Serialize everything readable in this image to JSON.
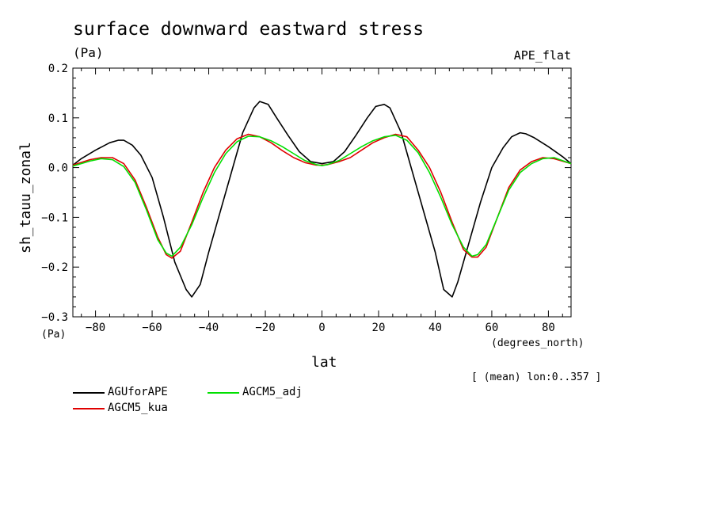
{
  "chart_data": {
    "type": "line",
    "title": "surface downward eastward stress",
    "units": "(Pa)",
    "dataset": "APE_flat",
    "xlabel": "lat",
    "xunits": "(degrees_north)",
    "ylabel": "sh_tauu_zonal",
    "note": "[ (mean) lon:0..357 ]",
    "xlim": [
      -88,
      88
    ],
    "ylim": [
      -0.3,
      0.2
    ],
    "xticks": [
      -80,
      -60,
      -40,
      -20,
      0,
      20,
      40,
      60,
      80
    ],
    "xtick_labels": [
      "−80",
      "−60",
      "−40",
      "−20",
      "0",
      "20",
      "40",
      "60",
      "80"
    ],
    "yticks": [
      -0.3,
      -0.2,
      -0.1,
      0.0,
      0.1,
      0.2
    ],
    "ytick_labels": [
      "−0.3",
      "−0.2",
      "−0.1",
      "0.0",
      "0.1",
      "0.2"
    ],
    "series": [
      {
        "name": "AGUforAPE",
        "color": "#000000",
        "x": [
          -88,
          -85,
          -80,
          -75,
          -72,
          -70,
          -67,
          -64,
          -60,
          -56,
          -52,
          -48,
          -46,
          -43,
          -40,
          -36,
          -32,
          -28,
          -24,
          -22,
          -19,
          -16,
          -12,
          -8,
          -4,
          0,
          4,
          8,
          12,
          16,
          19,
          22,
          24,
          28,
          32,
          36,
          40,
          43,
          46,
          48,
          52,
          56,
          60,
          64,
          67,
          70,
          72,
          75,
          80,
          85,
          88
        ],
        "values": [
          0.005,
          0.018,
          0.035,
          0.05,
          0.055,
          0.055,
          0.045,
          0.025,
          -0.02,
          -0.1,
          -0.19,
          -0.245,
          -0.26,
          -0.235,
          -0.17,
          -0.09,
          -0.01,
          0.07,
          0.12,
          0.133,
          0.127,
          0.1,
          0.065,
          0.032,
          0.012,
          0.008,
          0.012,
          0.032,
          0.065,
          0.1,
          0.123,
          0.127,
          0.12,
          0.07,
          -0.01,
          -0.09,
          -0.17,
          -0.245,
          -0.26,
          -0.23,
          -0.15,
          -0.07,
          0.0,
          0.04,
          0.062,
          0.07,
          0.068,
          0.06,
          0.042,
          0.022,
          0.008
        ]
      },
      {
        "name": "AGCM5_kua",
        "color": "#e00000",
        "x": [
          -88,
          -82,
          -78,
          -74,
          -70,
          -66,
          -62,
          -58,
          -55,
          -53,
          -50,
          -46,
          -42,
          -38,
          -34,
          -30,
          -26,
          -22,
          -18,
          -14,
          -10,
          -6,
          -2,
          0,
          2,
          6,
          10,
          14,
          18,
          22,
          26,
          30,
          34,
          38,
          42,
          46,
          50,
          53,
          55,
          58,
          62,
          66,
          70,
          74,
          78,
          82,
          88
        ],
        "values": [
          0.005,
          0.016,
          0.02,
          0.02,
          0.008,
          -0.025,
          -0.08,
          -0.14,
          -0.175,
          -0.182,
          -0.168,
          -0.11,
          -0.05,
          0.0,
          0.035,
          0.058,
          0.067,
          0.062,
          0.05,
          0.034,
          0.02,
          0.01,
          0.005,
          0.005,
          0.006,
          0.012,
          0.02,
          0.035,
          0.05,
          0.06,
          0.067,
          0.062,
          0.035,
          0.0,
          -0.05,
          -0.11,
          -0.165,
          -0.18,
          -0.18,
          -0.16,
          -0.1,
          -0.04,
          -0.005,
          0.012,
          0.02,
          0.018,
          0.008
        ]
      },
      {
        "name": "AGCM5_adj",
        "color": "#00e000",
        "x": [
          -88,
          -82,
          -78,
          -74,
          -70,
          -66,
          -62,
          -58,
          -55,
          -53,
          -50,
          -46,
          -42,
          -38,
          -34,
          -30,
          -26,
          -22,
          -18,
          -14,
          -10,
          -6,
          -2,
          0,
          2,
          6,
          10,
          14,
          18,
          22,
          26,
          30,
          34,
          38,
          42,
          46,
          50,
          53,
          55,
          58,
          62,
          66,
          70,
          74,
          78,
          82,
          88
        ],
        "values": [
          0.003,
          0.013,
          0.018,
          0.016,
          0.002,
          -0.03,
          -0.085,
          -0.145,
          -0.172,
          -0.178,
          -0.16,
          -0.115,
          -0.06,
          -0.01,
          0.028,
          0.052,
          0.063,
          0.062,
          0.054,
          0.042,
          0.028,
          0.014,
          0.006,
          0.004,
          0.006,
          0.014,
          0.028,
          0.042,
          0.054,
          0.062,
          0.065,
          0.055,
          0.03,
          -0.01,
          -0.06,
          -0.115,
          -0.16,
          -0.178,
          -0.175,
          -0.155,
          -0.1,
          -0.045,
          -0.01,
          0.008,
          0.018,
          0.02,
          0.008
        ]
      }
    ],
    "legend": [
      {
        "name": "AGUforAPE",
        "color": "#000000"
      },
      {
        "name": "AGCM5_adj",
        "color": "#00e000"
      },
      {
        "name": "AGCM5_kua",
        "color": "#e00000"
      }
    ]
  }
}
